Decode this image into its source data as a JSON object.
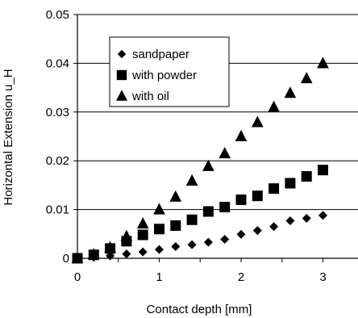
{
  "chart_data": {
    "type": "scatter",
    "xlabel": "Contact depth [mm]",
    "ylabel": "Horizontal Extension u_H",
    "xlim": [
      0,
      3.2
    ],
    "ylim": [
      0,
      0.05
    ],
    "x_ticks": [
      "0",
      "1",
      "2",
      "3"
    ],
    "x_tick_values": [
      0,
      1,
      2,
      3
    ],
    "y_ticks": [
      "0",
      "0.01",
      "0.02",
      "0.03",
      "0.04",
      "0.05"
    ],
    "y_tick_values": [
      0,
      0.01,
      0.02,
      0.03,
      0.04,
      0.05
    ],
    "grid": "horizontal",
    "legend_position": "top-left",
    "series": [
      {
        "name": "sandpaper",
        "marker": "diamond",
        "x": [
          0,
          0.2,
          0.4,
          0.6,
          0.8,
          1.0,
          1.2,
          1.4,
          1.6,
          1.8,
          2.0,
          2.2,
          2.4,
          2.6,
          2.8,
          3.0
        ],
        "values": [
          0,
          0.0002,
          0.0005,
          0.0009,
          0.0013,
          0.0018,
          0.0024,
          0.0028,
          0.0033,
          0.0039,
          0.0049,
          0.0057,
          0.0065,
          0.0077,
          0.0082,
          0.0088
        ]
      },
      {
        "name": "with powder",
        "marker": "square",
        "x": [
          0,
          0.2,
          0.4,
          0.6,
          0.8,
          1.0,
          1.2,
          1.4,
          1.6,
          1.8,
          2.0,
          2.2,
          2.4,
          2.6,
          2.8,
          3.0
        ],
        "values": [
          0,
          0.0007,
          0.002,
          0.0035,
          0.0048,
          0.006,
          0.0067,
          0.0079,
          0.0096,
          0.0105,
          0.012,
          0.0128,
          0.0143,
          0.0154,
          0.0168,
          0.0181
        ]
      },
      {
        "name": "with oil",
        "marker": "triangle",
        "x": [
          0,
          0.2,
          0.4,
          0.6,
          0.8,
          1.0,
          1.2,
          1.4,
          1.6,
          1.8,
          2.0,
          2.2,
          2.4,
          2.6,
          2.8,
          3.0
        ],
        "values": [
          0,
          0.0008,
          0.0022,
          0.0045,
          0.0071,
          0.01,
          0.0126,
          0.0159,
          0.0189,
          0.0215,
          0.025,
          0.0279,
          0.031,
          0.0339,
          0.0369,
          0.04
        ]
      }
    ]
  }
}
